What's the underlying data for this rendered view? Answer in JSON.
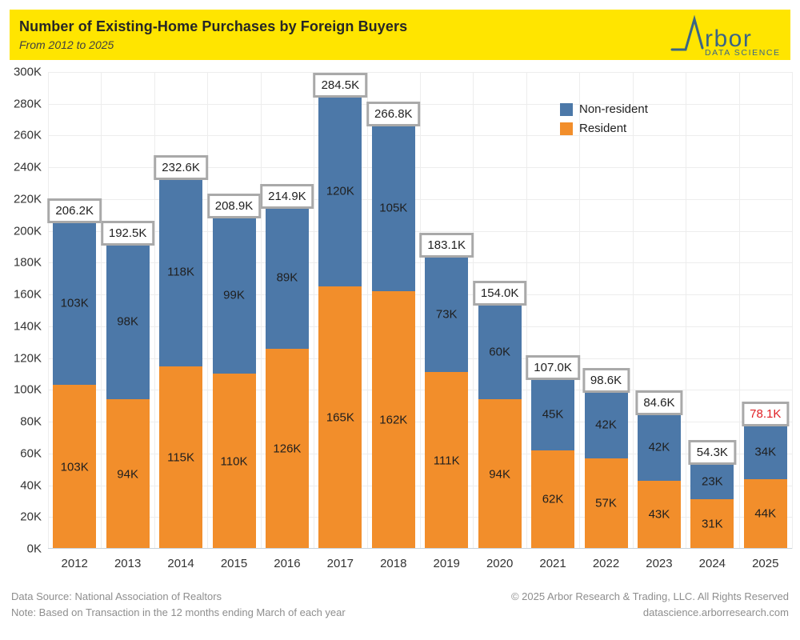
{
  "header": {
    "title": "Number of Existing-Home Purchases by Foreign Buyers",
    "subtitle": "From 2012 to 2025",
    "background": "#ffe500",
    "logo": {
      "brand": "Arbor",
      "wordmark_tail": "rbor",
      "tagline": "DATA SCIENCE",
      "color": "#3a6586"
    }
  },
  "legend": {
    "items": [
      {
        "label": "Non-resident",
        "color": "#4c78a8"
      },
      {
        "label": "Resident",
        "color": "#f28e2b"
      }
    ]
  },
  "chart_data": {
    "type": "bar",
    "stacked": true,
    "title": "Number of Existing-Home Purchases by Foreign Buyers",
    "subtitle": "From 2012 to 2025",
    "categories": [
      "2012",
      "2013",
      "2014",
      "2015",
      "2016",
      "2017",
      "2018",
      "2019",
      "2020",
      "2021",
      "2022",
      "2023",
      "2024",
      "2025"
    ],
    "series": [
      {
        "name": "Resident",
        "color": "#f28e2b",
        "values": [
          103,
          94,
          115,
          110,
          126,
          165,
          162,
          111,
          94,
          62,
          57,
          43,
          31,
          44
        ],
        "labels": [
          "103K",
          "94K",
          "115K",
          "110K",
          "126K",
          "165K",
          "162K",
          "111K",
          "94K",
          "62K",
          "57K",
          "43K",
          "31K",
          "44K"
        ]
      },
      {
        "name": "Non-resident",
        "color": "#4c78a8",
        "values": [
          103,
          98,
          118,
          99,
          89,
          120,
          105,
          73,
          60,
          45,
          42,
          42,
          23,
          34
        ],
        "labels": [
          "103K",
          "98K",
          "118K",
          "99K",
          "89K",
          "120K",
          "105K",
          "73K",
          "60K",
          "45K",
          "42K",
          "42K",
          "23K",
          "34K"
        ]
      }
    ],
    "totals": [
      206.2,
      192.5,
      232.6,
      208.9,
      214.9,
      284.5,
      266.8,
      183.1,
      154.0,
      107.0,
      98.6,
      84.6,
      54.3,
      78.1
    ],
    "total_labels": [
      {
        "text": "206.2K",
        "color": "#1f1f1f"
      },
      {
        "text": "192.5K",
        "color": "#1f1f1f"
      },
      {
        "text": "232.6K",
        "color": "#1f1f1f"
      },
      {
        "text": "208.9K",
        "color": "#1f1f1f"
      },
      {
        "text": "214.9K",
        "color": "#1f1f1f"
      },
      {
        "text": "284.5K",
        "color": "#1f1f1f"
      },
      {
        "text": "266.8K",
        "color": "#1f1f1f"
      },
      {
        "text": "183.1K",
        "color": "#1f1f1f"
      },
      {
        "text": "154.0K",
        "color": "#1f1f1f"
      },
      {
        "text": "107.0K",
        "color": "#1f1f1f"
      },
      {
        "text": "98.6K",
        "color": "#1f1f1f"
      },
      {
        "text": "84.6K",
        "color": "#1f1f1f"
      },
      {
        "text": "54.3K",
        "color": "#1f1f1f"
      },
      {
        "text": "78.1K",
        "color": "#e02126"
      }
    ],
    "ylim": [
      0,
      300
    ],
    "yticks": [
      {
        "label": "0K",
        "value": 0
      },
      {
        "label": "20K",
        "value": 20
      },
      {
        "label": "40K",
        "value": 40
      },
      {
        "label": "60K",
        "value": 60
      },
      {
        "label": "80K",
        "value": 80
      },
      {
        "label": "100K",
        "value": 100
      },
      {
        "label": "120K",
        "value": 120
      },
      {
        "label": "140K",
        "value": 140
      },
      {
        "label": "160K",
        "value": 160
      },
      {
        "label": "180K",
        "value": 180
      },
      {
        "label": "200K",
        "value": 200
      },
      {
        "label": "220K",
        "value": 220
      },
      {
        "label": "240K",
        "value": 240
      },
      {
        "label": "260K",
        "value": 260
      },
      {
        "label": "280K",
        "value": 280
      },
      {
        "label": "300K",
        "value": 300
      }
    ],
    "grid": true,
    "legend_position": "top-right"
  },
  "footer": {
    "source": "Data Source: National Association of Realtors",
    "note": "Note: Based on Transaction in the 12 months ending March of each year",
    "copyright": "© 2025 Arbor Research & Trading, LLC. All Rights Reserved",
    "website": "datascience.arborresearch.com"
  }
}
